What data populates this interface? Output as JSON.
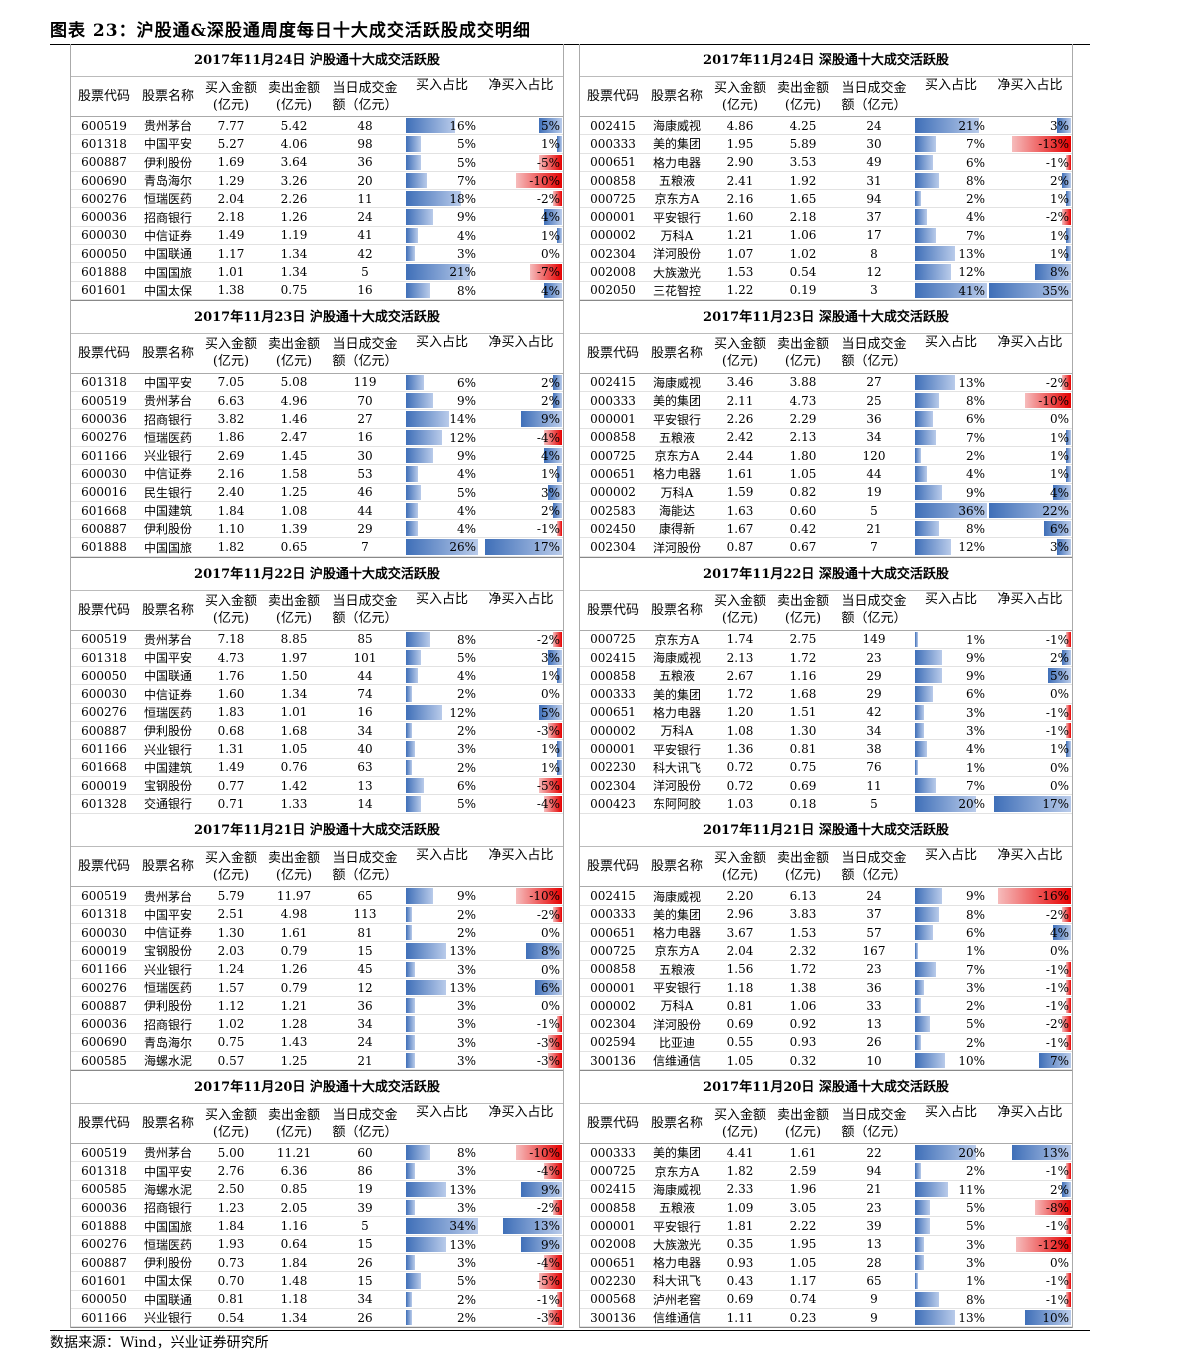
{
  "title": "图表 23：沪股通&深股通周度每日十大成交活跃股成交明细",
  "source": "数据来源：Wind，兴业证券研究所",
  "headers": {
    "code": "股票代码",
    "name": "股票名称",
    "buy": "买入金额\n(亿元)",
    "sell": "卖出金额\n(亿元)",
    "turnover": "当日成交金\n额（亿元）",
    "buy_pct": "买入占比",
    "net_pct": "净买入占比"
  },
  "colors": {
    "positive_bar": "#3f6fb8",
    "negative_bar": "#e60000"
  },
  "left_panels": [
    {
      "title": "2017年11月24日  沪股通十大成交活跃股",
      "rows": [
        [
          "600519",
          "贵州茅台",
          "7.77",
          "5.42",
          "48",
          "16%",
          "5%"
        ],
        [
          "601318",
          "中国平安",
          "5.27",
          "4.06",
          "98",
          "5%",
          "1%"
        ],
        [
          "600887",
          "伊利股份",
          "1.69",
          "3.64",
          "36",
          "5%",
          "-5%"
        ],
        [
          "600690",
          "青岛海尔",
          "1.29",
          "3.26",
          "20",
          "7%",
          "-10%"
        ],
        [
          "600276",
          "恒瑞医药",
          "2.04",
          "2.26",
          "11",
          "18%",
          "-2%"
        ],
        [
          "600036",
          "招商银行",
          "2.18",
          "1.26",
          "24",
          "9%",
          "4%"
        ],
        [
          "600030",
          "中信证券",
          "1.49",
          "1.19",
          "41",
          "4%",
          "1%"
        ],
        [
          "600050",
          "中国联通",
          "1.17",
          "1.34",
          "42",
          "3%",
          "0%"
        ],
        [
          "601888",
          "中国国旅",
          "1.01",
          "1.34",
          "5",
          "21%",
          "-7%"
        ],
        [
          "601601",
          "中国太保",
          "1.38",
          "0.75",
          "16",
          "8%",
          "4%"
        ]
      ]
    },
    {
      "title": "2017年11月23日  沪股通十大成交活跃股",
      "rows": [
        [
          "601318",
          "中国平安",
          "7.05",
          "5.08",
          "119",
          "6%",
          "2%"
        ],
        [
          "600519",
          "贵州茅台",
          "6.63",
          "4.96",
          "70",
          "9%",
          "2%"
        ],
        [
          "600036",
          "招商银行",
          "3.82",
          "1.46",
          "27",
          "14%",
          "9%"
        ],
        [
          "600276",
          "恒瑞医药",
          "1.86",
          "2.47",
          "16",
          "12%",
          "-4%"
        ],
        [
          "601166",
          "兴业银行",
          "2.69",
          "1.45",
          "30",
          "9%",
          "4%"
        ],
        [
          "600030",
          "中信证券",
          "2.16",
          "1.58",
          "53",
          "4%",
          "1%"
        ],
        [
          "600016",
          "民生银行",
          "2.40",
          "1.25",
          "46",
          "5%",
          "3%"
        ],
        [
          "601668",
          "中国建筑",
          "1.84",
          "1.08",
          "44",
          "4%",
          "2%"
        ],
        [
          "600887",
          "伊利股份",
          "1.10",
          "1.39",
          "29",
          "4%",
          "-1%"
        ],
        [
          "601888",
          "中国国旅",
          "1.82",
          "0.65",
          "7",
          "26%",
          "17%"
        ]
      ]
    },
    {
      "title": "2017年11月22日  沪股通十大成交活跃股",
      "rows": [
        [
          "600519",
          "贵州茅台",
          "7.18",
          "8.85",
          "85",
          "8%",
          "-2%"
        ],
        [
          "601318",
          "中国平安",
          "4.73",
          "1.97",
          "101",
          "5%",
          "3%"
        ],
        [
          "600050",
          "中国联通",
          "1.76",
          "1.50",
          "44",
          "4%",
          "1%"
        ],
        [
          "600030",
          "中信证券",
          "1.60",
          "1.34",
          "74",
          "2%",
          "0%"
        ],
        [
          "600276",
          "恒瑞医药",
          "1.83",
          "1.01",
          "16",
          "12%",
          "5%"
        ],
        [
          "600887",
          "伊利股份",
          "0.68",
          "1.68",
          "34",
          "2%",
          "-3%"
        ],
        [
          "601166",
          "兴业银行",
          "1.31",
          "1.05",
          "40",
          "3%",
          "1%"
        ],
        [
          "601668",
          "中国建筑",
          "1.49",
          "0.76",
          "63",
          "2%",
          "1%"
        ],
        [
          "600019",
          "宝钢股份",
          "0.77",
          "1.42",
          "13",
          "6%",
          "-5%"
        ],
        [
          "601328",
          "交通银行",
          "0.71",
          "1.33",
          "14",
          "5%",
          "-4%"
        ]
      ]
    },
    {
      "title": "2017年11月21日  沪股通十大成交活跃股",
      "rows": [
        [
          "600519",
          "贵州茅台",
          "5.79",
          "11.97",
          "65",
          "9%",
          "-10%"
        ],
        [
          "601318",
          "中国平安",
          "2.51",
          "4.98",
          "113",
          "2%",
          "-2%"
        ],
        [
          "600030",
          "中信证券",
          "1.30",
          "1.61",
          "81",
          "2%",
          "0%"
        ],
        [
          "600019",
          "宝钢股份",
          "2.03",
          "0.79",
          "15",
          "13%",
          "8%"
        ],
        [
          "601166",
          "兴业银行",
          "1.24",
          "1.26",
          "45",
          "3%",
          "0%"
        ],
        [
          "600276",
          "恒瑞医药",
          "1.57",
          "0.79",
          "12",
          "13%",
          "6%"
        ],
        [
          "600887",
          "伊利股份",
          "1.12",
          "1.21",
          "36",
          "3%",
          "0%"
        ],
        [
          "600036",
          "招商银行",
          "1.02",
          "1.28",
          "34",
          "3%",
          "-1%"
        ],
        [
          "600690",
          "青岛海尔",
          "0.75",
          "1.43",
          "24",
          "3%",
          "-3%"
        ],
        [
          "600585",
          "海螺水泥",
          "0.57",
          "1.25",
          "21",
          "3%",
          "-3%"
        ]
      ]
    },
    {
      "title": "2017年11月20日  沪股通十大成交活跃股",
      "rows": [
        [
          "600519",
          "贵州茅台",
          "5.00",
          "11.21",
          "60",
          "8%",
          "-10%"
        ],
        [
          "601318",
          "中国平安",
          "2.76",
          "6.36",
          "86",
          "3%",
          "-4%"
        ],
        [
          "600585",
          "海螺水泥",
          "2.50",
          "0.85",
          "19",
          "13%",
          "9%"
        ],
        [
          "600036",
          "招商银行",
          "1.23",
          "2.05",
          "39",
          "3%",
          "-2%"
        ],
        [
          "601888",
          "中国国旅",
          "1.84",
          "1.16",
          "5",
          "34%",
          "13%"
        ],
        [
          "600276",
          "恒瑞医药",
          "1.93",
          "0.64",
          "15",
          "13%",
          "9%"
        ],
        [
          "600887",
          "伊利股份",
          "0.73",
          "1.84",
          "26",
          "3%",
          "-4%"
        ],
        [
          "601601",
          "中国太保",
          "0.70",
          "1.48",
          "15",
          "5%",
          "-5%"
        ],
        [
          "600050",
          "中国联通",
          "0.81",
          "1.18",
          "34",
          "2%",
          "-1%"
        ],
        [
          "601166",
          "兴业银行",
          "0.54",
          "1.34",
          "26",
          "2%",
          "-3%"
        ]
      ]
    }
  ],
  "right_panels": [
    {
      "title": "2017年11月24日  深股通十大成交活跃股",
      "rows": [
        [
          "002415",
          "海康威视",
          "4.86",
          "4.25",
          "24",
          "21%",
          "3%"
        ],
        [
          "000333",
          "美的集团",
          "1.95",
          "5.89",
          "30",
          "7%",
          "-13%"
        ],
        [
          "000651",
          "格力电器",
          "2.90",
          "3.53",
          "49",
          "6%",
          "-1%"
        ],
        [
          "000858",
          "五粮液",
          "2.41",
          "1.92",
          "31",
          "8%",
          "2%"
        ],
        [
          "000725",
          "京东方A",
          "2.16",
          "1.65",
          "94",
          "2%",
          "1%"
        ],
        [
          "000001",
          "平安银行",
          "1.60",
          "2.18",
          "37",
          "4%",
          "-2%"
        ],
        [
          "000002",
          "万科A",
          "1.21",
          "1.06",
          "17",
          "7%",
          "1%"
        ],
        [
          "002304",
          "洋河股份",
          "1.07",
          "1.02",
          "8",
          "13%",
          "1%"
        ],
        [
          "002008",
          "大族激光",
          "1.53",
          "0.54",
          "12",
          "12%",
          "8%"
        ],
        [
          "002050",
          "三花智控",
          "1.22",
          "0.19",
          "3",
          "41%",
          "35%"
        ]
      ]
    },
    {
      "title": "2017年11月23日  深股通十大成交活跃股",
      "rows": [
        [
          "002415",
          "海康威视",
          "3.46",
          "3.88",
          "27",
          "13%",
          "-2%"
        ],
        [
          "000333",
          "美的集团",
          "2.11",
          "4.73",
          "25",
          "8%",
          "-10%"
        ],
        [
          "000001",
          "平安银行",
          "2.26",
          "2.29",
          "36",
          "6%",
          "0%"
        ],
        [
          "000858",
          "五粮液",
          "2.42",
          "2.13",
          "34",
          "7%",
          "1%"
        ],
        [
          "000725",
          "京东方A",
          "2.44",
          "1.80",
          "120",
          "2%",
          "1%"
        ],
        [
          "000651",
          "格力电器",
          "1.61",
          "1.05",
          "44",
          "4%",
          "1%"
        ],
        [
          "000002",
          "万科A",
          "1.59",
          "0.82",
          "19",
          "9%",
          "4%"
        ],
        [
          "002583",
          "海能达",
          "1.63",
          "0.60",
          "5",
          "36%",
          "22%"
        ],
        [
          "002450",
          "康得新",
          "1.67",
          "0.42",
          "21",
          "8%",
          "6%"
        ],
        [
          "002304",
          "洋河股份",
          "0.87",
          "0.67",
          "7",
          "12%",
          "3%"
        ]
      ]
    },
    {
      "title": "2017年11月22日  深股通十大成交活跃股",
      "rows": [
        [
          "000725",
          "京东方A",
          "1.74",
          "2.75",
          "149",
          "1%",
          "-1%"
        ],
        [
          "002415",
          "海康威视",
          "2.13",
          "1.72",
          "23",
          "9%",
          "2%"
        ],
        [
          "000858",
          "五粮液",
          "2.67",
          "1.16",
          "29",
          "9%",
          "5%"
        ],
        [
          "000333",
          "美的集团",
          "1.72",
          "1.68",
          "29",
          "6%",
          "0%"
        ],
        [
          "000651",
          "格力电器",
          "1.20",
          "1.51",
          "42",
          "3%",
          "-1%"
        ],
        [
          "000002",
          "万科A",
          "1.08",
          "1.30",
          "34",
          "3%",
          "-1%"
        ],
        [
          "000001",
          "平安银行",
          "1.36",
          "0.81",
          "38",
          "4%",
          "1%"
        ],
        [
          "002230",
          "科大讯飞",
          "0.72",
          "0.75",
          "76",
          "1%",
          "0%"
        ],
        [
          "002304",
          "洋河股份",
          "0.72",
          "0.69",
          "11",
          "7%",
          "0%"
        ],
        [
          "000423",
          "东阿阿胶",
          "1.03",
          "0.18",
          "5",
          "20%",
          "17%"
        ]
      ]
    },
    {
      "title": "2017年11月21日  深股通十大成交活跃股",
      "rows": [
        [
          "002415",
          "海康威视",
          "2.20",
          "6.13",
          "24",
          "9%",
          "-16%"
        ],
        [
          "000333",
          "美的集团",
          "2.96",
          "3.83",
          "37",
          "8%",
          "-2%"
        ],
        [
          "000651",
          "格力电器",
          "3.67",
          "1.53",
          "57",
          "6%",
          "4%"
        ],
        [
          "000725",
          "京东方A",
          "2.04",
          "2.32",
          "167",
          "1%",
          "0%"
        ],
        [
          "000858",
          "五粮液",
          "1.56",
          "1.72",
          "23",
          "7%",
          "-1%"
        ],
        [
          "000001",
          "平安银行",
          "1.18",
          "1.38",
          "36",
          "3%",
          "-1%"
        ],
        [
          "000002",
          "万科A",
          "0.81",
          "1.06",
          "33",
          "2%",
          "-1%"
        ],
        [
          "002304",
          "洋河股份",
          "0.69",
          "0.92",
          "13",
          "5%",
          "-2%"
        ],
        [
          "002594",
          "比亚迪",
          "0.55",
          "0.93",
          "26",
          "2%",
          "-1%"
        ],
        [
          "300136",
          "信维通信",
          "1.05",
          "0.32",
          "10",
          "10%",
          "7%"
        ]
      ]
    },
    {
      "title": "2017年11月20日  深股通十大成交活跃股",
      "rows": [
        [
          "000333",
          "美的集团",
          "4.41",
          "1.61",
          "22",
          "20%",
          "13%"
        ],
        [
          "000725",
          "京东方A",
          "1.82",
          "2.59",
          "94",
          "2%",
          "-1%"
        ],
        [
          "002415",
          "海康威视",
          "2.33",
          "1.96",
          "21",
          "11%",
          "2%"
        ],
        [
          "000858",
          "五粮液",
          "1.09",
          "3.05",
          "23",
          "5%",
          "-8%"
        ],
        [
          "000001",
          "平安银行",
          "1.81",
          "2.22",
          "39",
          "5%",
          "-1%"
        ],
        [
          "002008",
          "大族激光",
          "0.35",
          "1.95",
          "13",
          "3%",
          "-12%"
        ],
        [
          "000651",
          "格力电器",
          "0.93",
          "1.05",
          "28",
          "3%",
          "0%"
        ],
        [
          "002230",
          "科大讯飞",
          "0.43",
          "1.17",
          "65",
          "1%",
          "-1%"
        ],
        [
          "000568",
          "泸州老窖",
          "0.69",
          "0.74",
          "9",
          "8%",
          "-1%"
        ],
        [
          "300136",
          "信维通信",
          "1.11",
          "0.23",
          "9",
          "13%",
          "10%"
        ]
      ]
    }
  ]
}
